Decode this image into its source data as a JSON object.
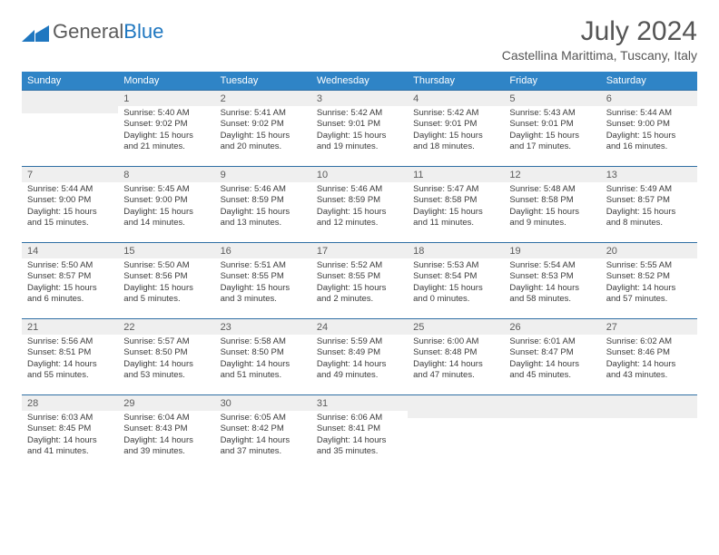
{
  "header": {
    "logo_general": "General",
    "logo_blue": "Blue",
    "month_title": "July 2024",
    "location": "Castellina Marittima, Tuscany, Italy"
  },
  "weekdays": [
    "Sunday",
    "Monday",
    "Tuesday",
    "Wednesday",
    "Thursday",
    "Friday",
    "Saturday"
  ],
  "colors": {
    "header_bg": "#2f84c6",
    "header_text": "#ffffff",
    "day_bg": "#efefef",
    "rule": "#2f6fa4",
    "text": "#333333"
  },
  "fontsize": {
    "title": 30,
    "subtitle": 14,
    "th": 11,
    "daynum": 11,
    "body": 9.5
  },
  "weeks": [
    [
      {
        "n": ""
      },
      {
        "n": "1",
        "sr": "5:40 AM",
        "ss": "9:02 PM",
        "dl": "15 hours and 21 minutes."
      },
      {
        "n": "2",
        "sr": "5:41 AM",
        "ss": "9:02 PM",
        "dl": "15 hours and 20 minutes."
      },
      {
        "n": "3",
        "sr": "5:42 AM",
        "ss": "9:01 PM",
        "dl": "15 hours and 19 minutes."
      },
      {
        "n": "4",
        "sr": "5:42 AM",
        "ss": "9:01 PM",
        "dl": "15 hours and 18 minutes."
      },
      {
        "n": "5",
        "sr": "5:43 AM",
        "ss": "9:01 PM",
        "dl": "15 hours and 17 minutes."
      },
      {
        "n": "6",
        "sr": "5:44 AM",
        "ss": "9:00 PM",
        "dl": "15 hours and 16 minutes."
      }
    ],
    [
      {
        "n": "7",
        "sr": "5:44 AM",
        "ss": "9:00 PM",
        "dl": "15 hours and 15 minutes."
      },
      {
        "n": "8",
        "sr": "5:45 AM",
        "ss": "9:00 PM",
        "dl": "15 hours and 14 minutes."
      },
      {
        "n": "9",
        "sr": "5:46 AM",
        "ss": "8:59 PM",
        "dl": "15 hours and 13 minutes."
      },
      {
        "n": "10",
        "sr": "5:46 AM",
        "ss": "8:59 PM",
        "dl": "15 hours and 12 minutes."
      },
      {
        "n": "11",
        "sr": "5:47 AM",
        "ss": "8:58 PM",
        "dl": "15 hours and 11 minutes."
      },
      {
        "n": "12",
        "sr": "5:48 AM",
        "ss": "8:58 PM",
        "dl": "15 hours and 9 minutes."
      },
      {
        "n": "13",
        "sr": "5:49 AM",
        "ss": "8:57 PM",
        "dl": "15 hours and 8 minutes."
      }
    ],
    [
      {
        "n": "14",
        "sr": "5:50 AM",
        "ss": "8:57 PM",
        "dl": "15 hours and 6 minutes."
      },
      {
        "n": "15",
        "sr": "5:50 AM",
        "ss": "8:56 PM",
        "dl": "15 hours and 5 minutes."
      },
      {
        "n": "16",
        "sr": "5:51 AM",
        "ss": "8:55 PM",
        "dl": "15 hours and 3 minutes."
      },
      {
        "n": "17",
        "sr": "5:52 AM",
        "ss": "8:55 PM",
        "dl": "15 hours and 2 minutes."
      },
      {
        "n": "18",
        "sr": "5:53 AM",
        "ss": "8:54 PM",
        "dl": "15 hours and 0 minutes."
      },
      {
        "n": "19",
        "sr": "5:54 AM",
        "ss": "8:53 PM",
        "dl": "14 hours and 58 minutes."
      },
      {
        "n": "20",
        "sr": "5:55 AM",
        "ss": "8:52 PM",
        "dl": "14 hours and 57 minutes."
      }
    ],
    [
      {
        "n": "21",
        "sr": "5:56 AM",
        "ss": "8:51 PM",
        "dl": "14 hours and 55 minutes."
      },
      {
        "n": "22",
        "sr": "5:57 AM",
        "ss": "8:50 PM",
        "dl": "14 hours and 53 minutes."
      },
      {
        "n": "23",
        "sr": "5:58 AM",
        "ss": "8:50 PM",
        "dl": "14 hours and 51 minutes."
      },
      {
        "n": "24",
        "sr": "5:59 AM",
        "ss": "8:49 PM",
        "dl": "14 hours and 49 minutes."
      },
      {
        "n": "25",
        "sr": "6:00 AM",
        "ss": "8:48 PM",
        "dl": "14 hours and 47 minutes."
      },
      {
        "n": "26",
        "sr": "6:01 AM",
        "ss": "8:47 PM",
        "dl": "14 hours and 45 minutes."
      },
      {
        "n": "27",
        "sr": "6:02 AM",
        "ss": "8:46 PM",
        "dl": "14 hours and 43 minutes."
      }
    ],
    [
      {
        "n": "28",
        "sr": "6:03 AM",
        "ss": "8:45 PM",
        "dl": "14 hours and 41 minutes."
      },
      {
        "n": "29",
        "sr": "6:04 AM",
        "ss": "8:43 PM",
        "dl": "14 hours and 39 minutes."
      },
      {
        "n": "30",
        "sr": "6:05 AM",
        "ss": "8:42 PM",
        "dl": "14 hours and 37 minutes."
      },
      {
        "n": "31",
        "sr": "6:06 AM",
        "ss": "8:41 PM",
        "dl": "14 hours and 35 minutes."
      },
      {
        "n": ""
      },
      {
        "n": ""
      },
      {
        "n": ""
      }
    ]
  ],
  "labels": {
    "sunrise": "Sunrise: ",
    "sunset": "Sunset: ",
    "daylight": "Daylight: "
  }
}
